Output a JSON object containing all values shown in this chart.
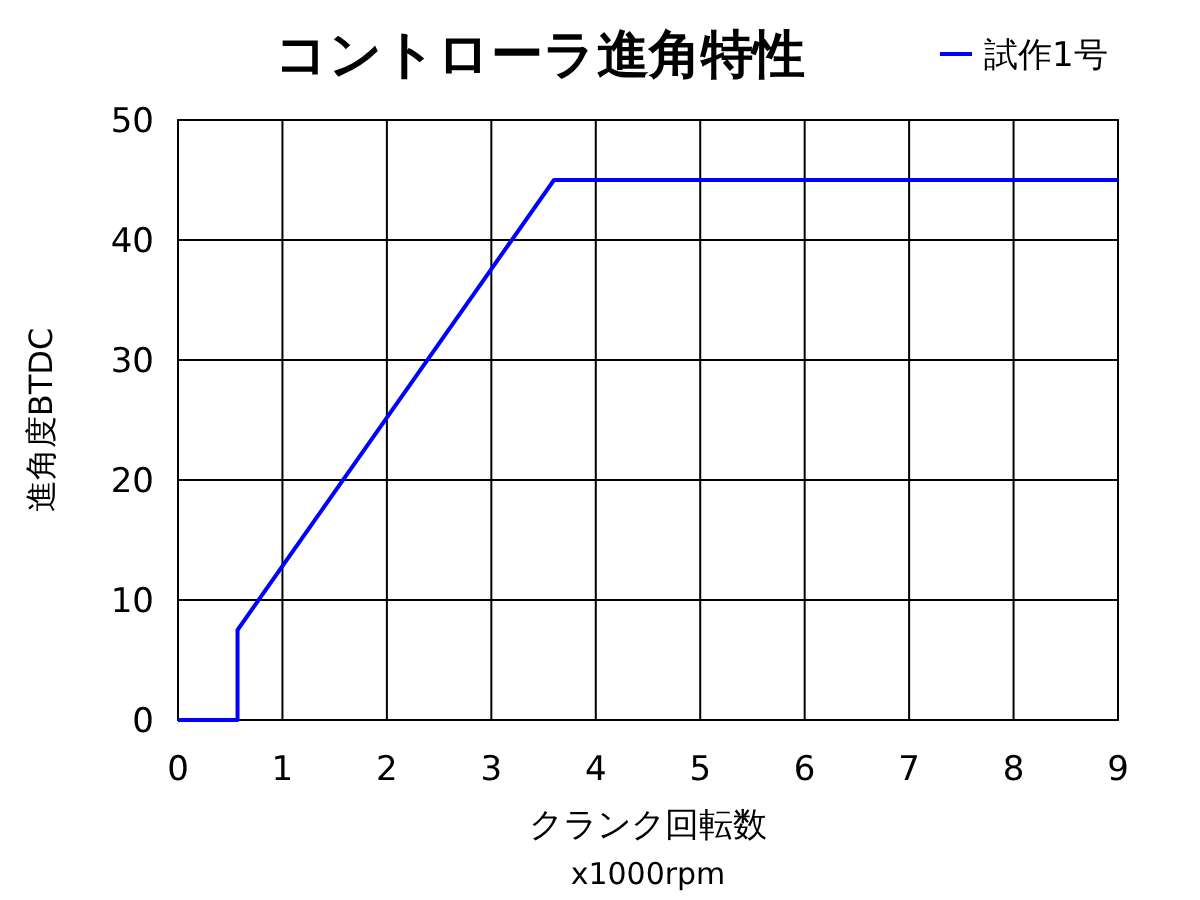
{
  "chart_data": {
    "type": "line",
    "title": "コントローラ進角特性",
    "xlabel": "クランク回転数\nx1000rpm",
    "ylabel": "進角度BTDC",
    "x": [
      0,
      0.57,
      0.57,
      3.6,
      9
    ],
    "series": [
      {
        "name": "試作1号",
        "color": "#0000ff",
        "values": [
          0,
          0,
          7.5,
          45,
          45
        ]
      }
    ],
    "xlim": [
      0,
      9
    ],
    "xticks": [
      0,
      1,
      2,
      3,
      4,
      5,
      6,
      7,
      8,
      9
    ],
    "ylim": [
      0,
      50
    ],
    "yticks": [
      0,
      10,
      20,
      30,
      40,
      50
    ],
    "grid": true,
    "legend": "top right",
    "marker": "none",
    "line_style": "solid"
  }
}
